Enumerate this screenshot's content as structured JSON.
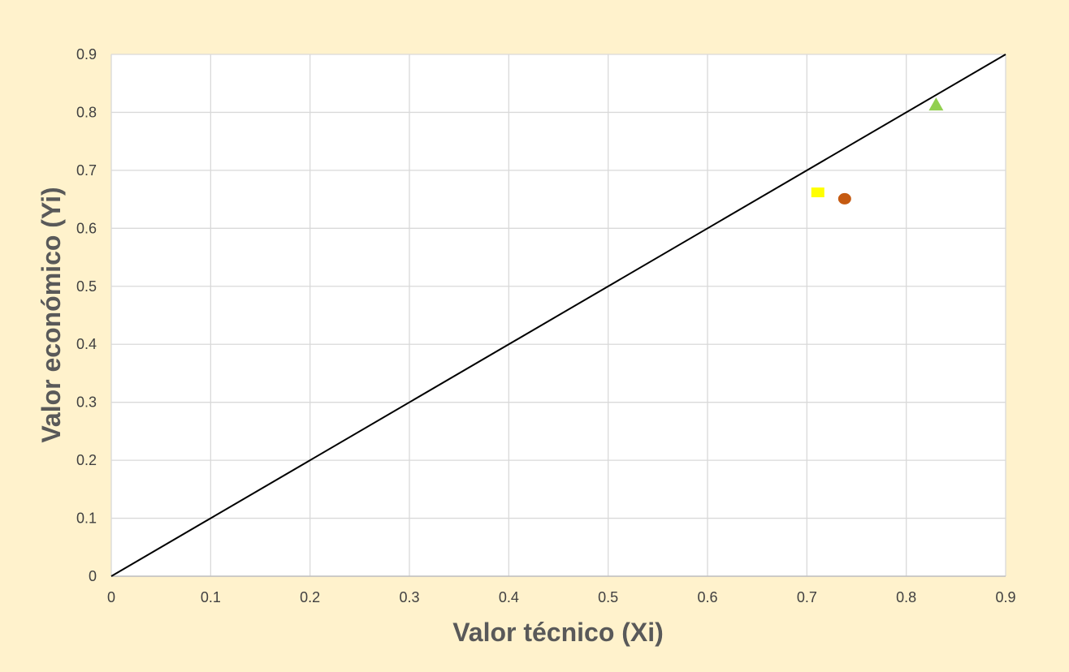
{
  "chart_data": {
    "type": "scatter",
    "title": "",
    "xlabel": "Valor técnico (Xi)",
    "ylabel": "Valor económico (Yi)",
    "xlim": [
      0,
      0.9
    ],
    "ylim": [
      0,
      0.9
    ],
    "xticks": [
      "0",
      "0.1",
      "0.2",
      "0.3",
      "0.4",
      "0.5",
      "0.6",
      "0.7",
      "0.8",
      "0.9"
    ],
    "yticks": [
      "0",
      "0.1",
      "0.2",
      "0.3",
      "0.4",
      "0.5",
      "0.6",
      "0.7",
      "0.8",
      "0.9"
    ],
    "grid": true,
    "legend": "none",
    "reference_line": {
      "x": [
        0,
        0.9
      ],
      "y": [
        0,
        0.9
      ],
      "color": "#000000"
    },
    "series": [
      {
        "marker": "square",
        "color": "#FFFF00",
        "points": [
          {
            "x": 0.711,
            "y": 0.662
          }
        ]
      },
      {
        "marker": "circle",
        "color": "#C55A11",
        "points": [
          {
            "x": 0.738,
            "y": 0.651
          }
        ]
      },
      {
        "marker": "triangle",
        "color": "#92D050",
        "points": [
          {
            "x": 0.83,
            "y": 0.813
          }
        ]
      }
    ]
  }
}
